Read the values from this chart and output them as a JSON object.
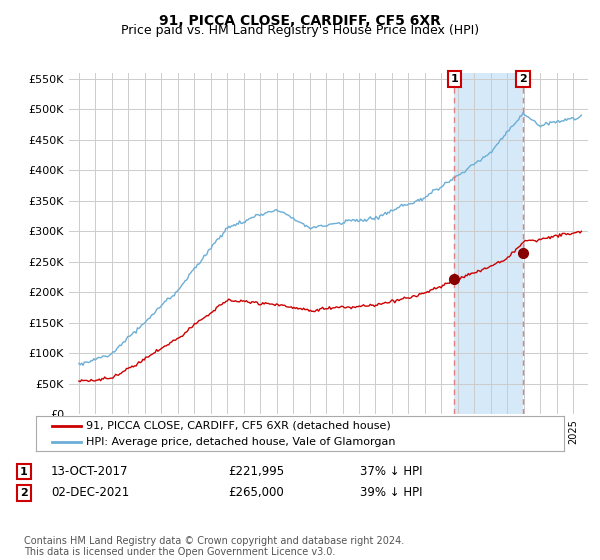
{
  "title": "91, PICCA CLOSE, CARDIFF, CF5 6XR",
  "subtitle": "Price paid vs. HM Land Registry's House Price Index (HPI)",
  "ylim": [
    0,
    560000
  ],
  "yticks": [
    0,
    50000,
    100000,
    150000,
    200000,
    250000,
    300000,
    350000,
    400000,
    450000,
    500000,
    550000
  ],
  "ytick_labels": [
    "£0",
    "£50K",
    "£100K",
    "£150K",
    "£200K",
    "£250K",
    "£300K",
    "£350K",
    "£400K",
    "£450K",
    "£500K",
    "£550K"
  ],
  "hpi_color": "#6baed6",
  "hpi_fill_color": "#d6e9f8",
  "price_color": "#cc0000",
  "vline_color": "#e08080",
  "grid_color": "#cccccc",
  "legend_entries": [
    "91, PICCA CLOSE, CARDIFF, CF5 6XR (detached house)",
    "HPI: Average price, detached house, Vale of Glamorgan"
  ],
  "annotation_1": {
    "label": "1",
    "date": "13-OCT-2017",
    "price": "£221,995",
    "pct": "37% ↓ HPI"
  },
  "annotation_2": {
    "label": "2",
    "date": "02-DEC-2021",
    "price": "£265,000",
    "pct": "39% ↓ HPI"
  },
  "footnote": "Contains HM Land Registry data © Crown copyright and database right 2024.\nThis data is licensed under the Open Government Licence v3.0.",
  "title_fontsize": 10,
  "subtitle_fontsize": 9,
  "axis_fontsize": 8,
  "legend_fontsize": 8,
  "annot_fontsize": 8.5,
  "footnote_fontsize": 7
}
